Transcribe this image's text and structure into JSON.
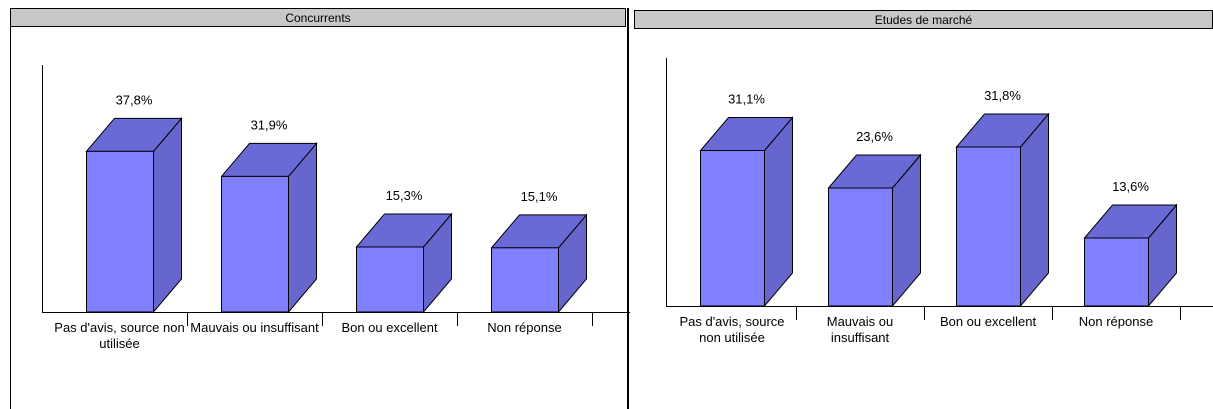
{
  "chart_data": [
    {
      "type": "bar3d",
      "title": "Concurrents",
      "categories": [
        "Pas d'avis, source non utilisée",
        "Mauvais ou insuffisant",
        "Bon ou excellent",
        "Non réponse"
      ],
      "values": [
        37.8,
        31.9,
        15.3,
        15.1
      ],
      "value_labels": [
        "37,8%",
        "31,9%",
        "15,3%",
        "15,1%"
      ],
      "color": "#8080ff"
    },
    {
      "type": "bar3d",
      "title": "Etudes de marché",
      "categories": [
        "Pas d'avis, source non utilisée",
        "Mauvais ou insuffisant",
        "Bon ou excellent",
        "Non réponse"
      ],
      "values": [
        31.1,
        23.6,
        31.8,
        13.6
      ],
      "value_labels": [
        "31,1%",
        "23,6%",
        "31,8%",
        "13,6%"
      ],
      "color": "#8080ff"
    }
  ]
}
